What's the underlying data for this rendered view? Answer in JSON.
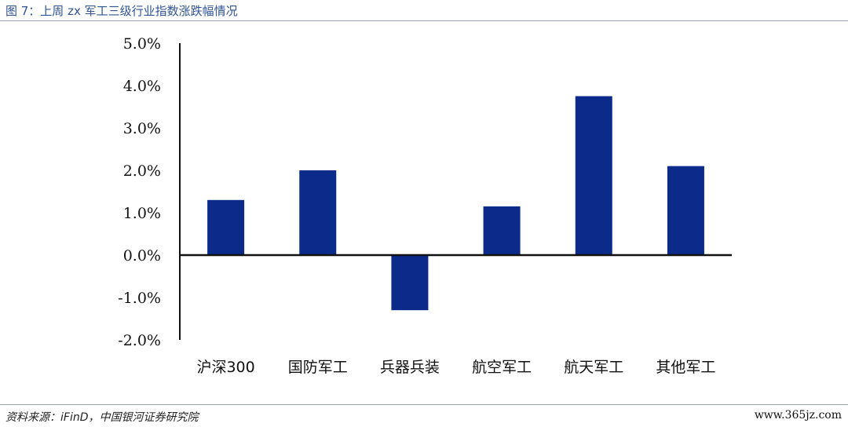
{
  "header": {
    "title": "图 7：上周 zx 军工三级行业指数涨跌幅情况"
  },
  "footer": {
    "source": "资料来源：iFinD，中国银河证券研究院",
    "watermark": "www.365jz.com"
  },
  "chart_data": {
    "type": "bar",
    "categories": [
      "沪深300",
      "国防军工",
      "兵器兵装",
      "航空军工",
      "航天军工",
      "其他军工"
    ],
    "values": [
      1.3,
      2.0,
      -1.3,
      1.15,
      3.75,
      2.1
    ],
    "unit": "%",
    "ylim": [
      -2.0,
      5.0
    ],
    "yticks": [
      "5.0%",
      "4.0%",
      "3.0%",
      "2.0%",
      "1.0%",
      "0.0%",
      "-1.0%",
      "-2.0%"
    ],
    "ytick_values": [
      5,
      4,
      3,
      2,
      1,
      0,
      -1,
      -2
    ],
    "bar_color": "#0b2a8a",
    "grid": false,
    "legend": "none"
  }
}
